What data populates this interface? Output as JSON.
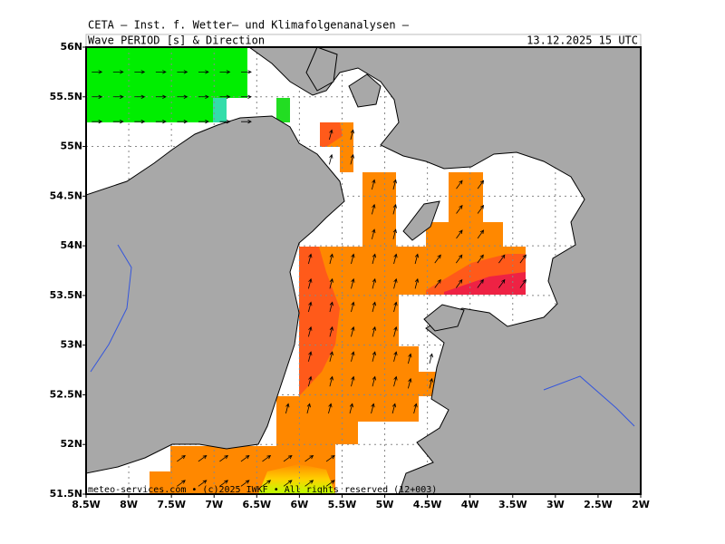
{
  "header": {
    "title": "CETA – Inst. f. Wetter– und Klimafolgenanalysen –",
    "subtitle": "Wave PERIOD [s] & Direction",
    "valid_time": "13.12.2025 15 UTC"
  },
  "map": {
    "xlim": [
      -8.5,
      -2
    ],
    "ylim": [
      51.5,
      56
    ],
    "xticks": [
      {
        "value": -8.5,
        "label": "8.5W"
      },
      {
        "value": -8,
        "label": "8W"
      },
      {
        "value": -7.5,
        "label": "7.5W"
      },
      {
        "value": -7,
        "label": "7W"
      },
      {
        "value": -6.5,
        "label": "6.5W"
      },
      {
        "value": -6,
        "label": "6W"
      },
      {
        "value": -5.5,
        "label": "5.5W"
      },
      {
        "value": -5,
        "label": "5W"
      },
      {
        "value": -4.5,
        "label": "4.5W"
      },
      {
        "value": -4,
        "label": "4W"
      },
      {
        "value": -3.5,
        "label": "3.5W"
      },
      {
        "value": -3,
        "label": "3W"
      },
      {
        "value": -2.5,
        "label": "2.5W"
      },
      {
        "value": -2,
        "label": "2W"
      }
    ],
    "yticks": [
      {
        "value": 51.5,
        "label": "51.5N"
      },
      {
        "value": 52,
        "label": "52N"
      },
      {
        "value": 52.5,
        "label": "52.5N"
      },
      {
        "value": 53,
        "label": "53N"
      },
      {
        "value": 53.5,
        "label": "53.5N"
      },
      {
        "value": 54,
        "label": "54N"
      },
      {
        "value": 54.5,
        "label": "54.5N"
      },
      {
        "value": 55,
        "label": "55N"
      },
      {
        "value": 55.5,
        "label": "55.5N"
      },
      {
        "value": 56,
        "label": "56N"
      }
    ]
  },
  "footer": "meteo-services.com • (c)2025 IWKF • All rights reserved (12+003)"
}
